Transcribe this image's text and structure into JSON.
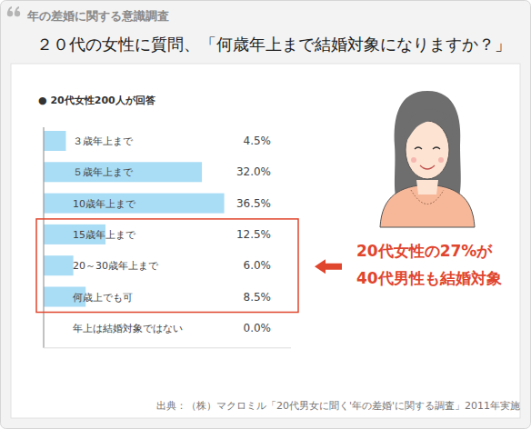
{
  "chart_data": {
    "type": "bar",
    "orientation": "horizontal",
    "subtitle": "年の差婚に関する意識調査",
    "title": "２０代の女性に質問、「何歳年上まで結婚対象になりますか？」",
    "note": "● 20代女性200人が回答",
    "categories": [
      "３歳年上まで",
      "５歳年上まで",
      "10歳年上まで",
      "15歳年上まで",
      "20～30歳年上まで",
      "何歳上でも可",
      "年上は結婚対象ではない"
    ],
    "values": [
      4.5,
      32.0,
      36.5,
      12.5,
      6.0,
      8.5,
      0.0
    ],
    "value_labels": [
      "4.5%",
      "32.0%",
      "36.5%",
      "12.5%",
      "6.0%",
      "8.5%",
      "0.0%"
    ],
    "data_labels": true,
    "color": "#a9dcf5",
    "xlim": [
      0,
      50
    ],
    "tick_labels": false,
    "grid": false,
    "annotation": [
      "20代女性の27%が",
      "40代男性も結婚対象"
    ],
    "source": "出典：（株）マクロミル「20代男女に聞く'年の差婚'に関する調査」2011年実施"
  }
}
